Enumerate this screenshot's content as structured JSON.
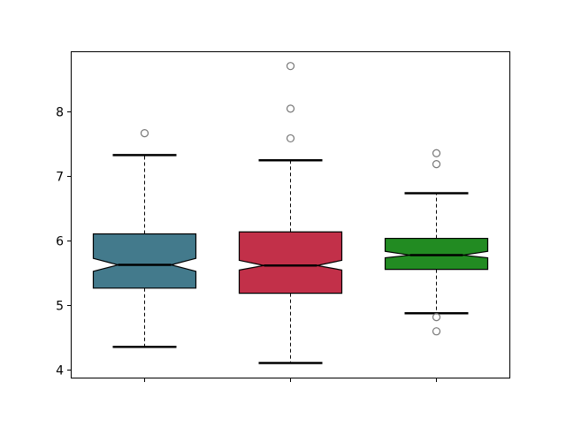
{
  "chart_data": {
    "type": "boxplot",
    "notched": true,
    "title": "",
    "xlabel": "",
    "ylabel": "",
    "ylim": [
      3.9,
      8.9
    ],
    "yticks": [
      4,
      5,
      6,
      7,
      8
    ],
    "xtick_labels": [
      "",
      "",
      ""
    ],
    "grid": false,
    "series": [
      {
        "color": "#437a8c",
        "whisker_low": 4.36,
        "q1": 5.27,
        "notch_low": 5.53,
        "median": 5.63,
        "notch_high": 5.73,
        "q3": 6.11,
        "whisker_high": 7.33,
        "outliers": [
          7.67
        ]
      },
      {
        "color": "#c23049",
        "whisker_low": 4.11,
        "q1": 5.19,
        "notch_low": 5.55,
        "median": 5.62,
        "notch_high": 5.7,
        "q3": 6.14,
        "whisker_high": 7.25,
        "outliers": [
          7.59,
          8.05,
          8.71
        ]
      },
      {
        "color": "#228b22",
        "whisker_low": 4.88,
        "q1": 5.56,
        "notch_low": 5.74,
        "median": 5.78,
        "notch_high": 5.84,
        "q3": 6.04,
        "whisker_high": 6.74,
        "outliers": [
          7.19,
          7.36,
          4.82,
          4.6
        ]
      }
    ]
  }
}
